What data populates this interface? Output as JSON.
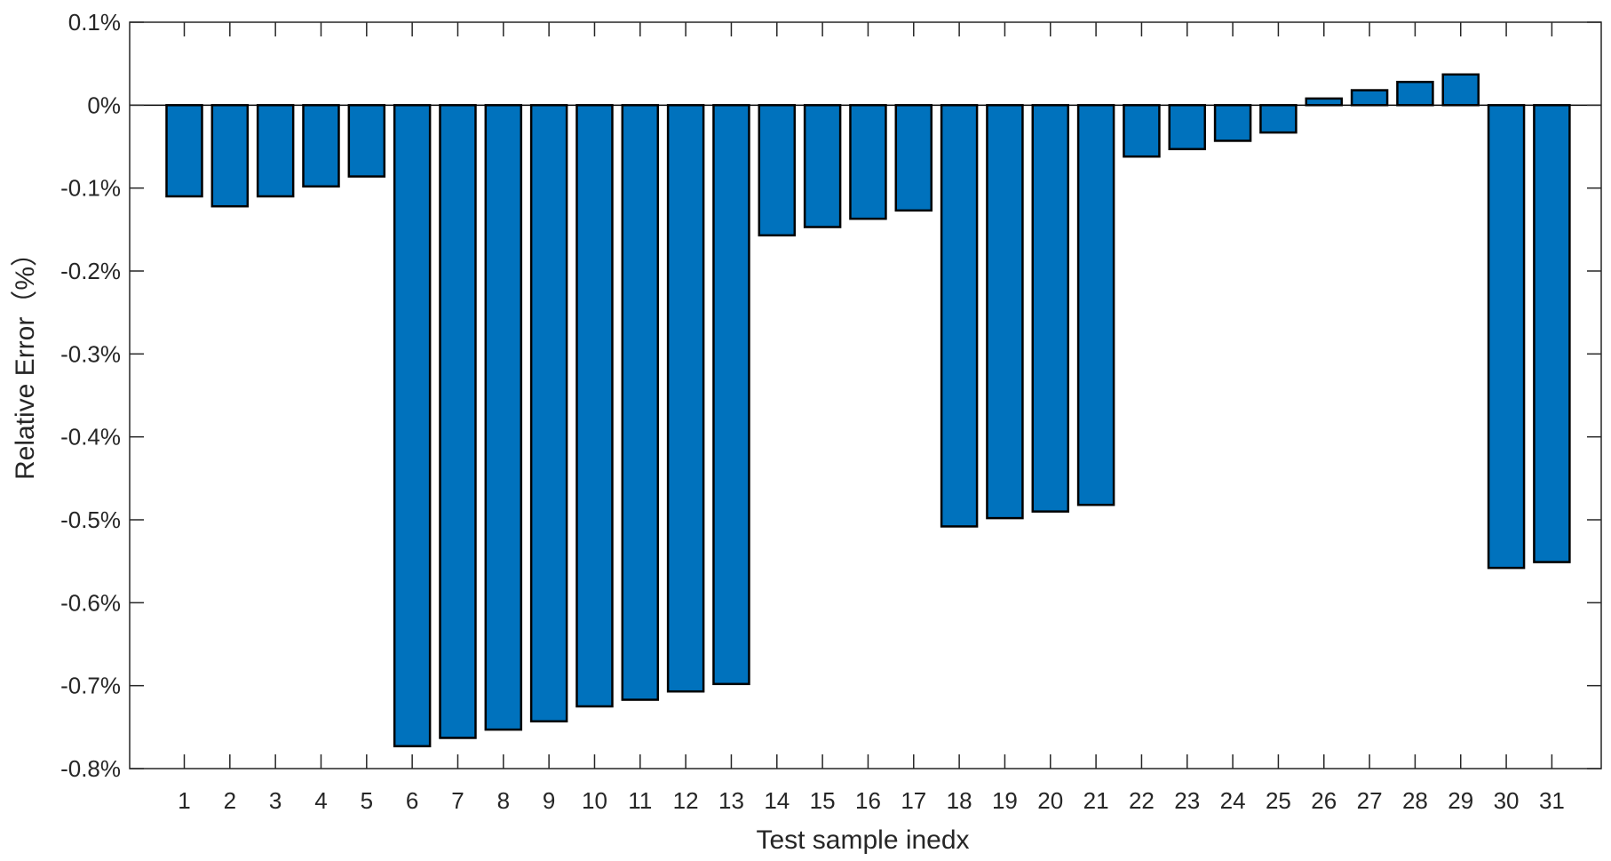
{
  "chart_data": {
    "type": "bar",
    "categories": [
      "1",
      "2",
      "3",
      "4",
      "5",
      "6",
      "7",
      "8",
      "9",
      "10",
      "11",
      "12",
      "13",
      "14",
      "15",
      "16",
      "17",
      "18",
      "19",
      "20",
      "21",
      "22",
      "23",
      "24",
      "25",
      "26",
      "27",
      "28",
      "29",
      "30",
      "31"
    ],
    "values": [
      -0.11,
      -0.122,
      -0.11,
      -0.098,
      -0.086,
      -0.773,
      -0.763,
      -0.753,
      -0.743,
      -0.725,
      -0.717,
      -0.707,
      -0.698,
      -0.157,
      -0.147,
      -0.137,
      -0.127,
      -0.508,
      -0.498,
      -0.49,
      -0.482,
      -0.062,
      -0.053,
      -0.043,
      -0.033,
      0.008,
      0.018,
      0.028,
      0.037,
      -0.558,
      -0.551
    ],
    "xlabel": "Test sample inedx",
    "ylabel": "Relative Error（%）",
    "ylim": [
      -0.8,
      0.1
    ],
    "yticks": [
      0.1,
      0,
      -0.1,
      -0.2,
      -0.3,
      -0.4,
      -0.5,
      -0.6,
      -0.7,
      -0.8
    ],
    "ytick_labels": [
      "0.1%",
      "0%",
      "-0.1%",
      "-0.2%",
      "-0.3%",
      "-0.4%",
      "-0.5%",
      "-0.6%",
      "-0.7%",
      "-0.8%"
    ],
    "bar_color": "#0072BD",
    "grid": false,
    "legend": "none"
  }
}
